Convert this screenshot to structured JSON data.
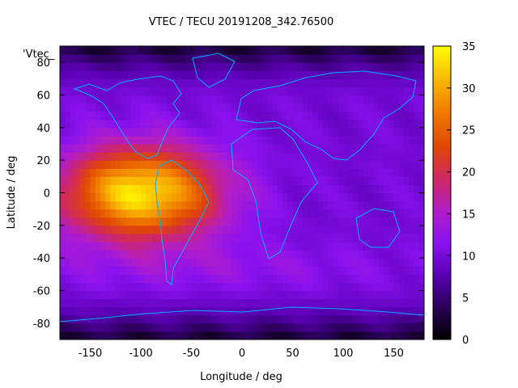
{
  "chart_data": {
    "type": "heatmap",
    "title": "VTEC / TECU 20191208_342.76500",
    "key_label": "'Vtec_",
    "xlabel": "Longitude / deg",
    "ylabel": "Latitude / deg",
    "xlim": [
      -180,
      180
    ],
    "ylim": [
      -90,
      90
    ],
    "x_ticks": [
      -150,
      -100,
      -50,
      0,
      50,
      100,
      150
    ],
    "y_ticks": [
      -80,
      -60,
      -40,
      -20,
      0,
      20,
      40,
      60,
      80
    ],
    "colorbar": {
      "range": [
        0,
        35
      ],
      "ticks": [
        0,
        5,
        10,
        15,
        20,
        25,
        30,
        35
      ],
      "colormap": [
        "#000000",
        "#2a0058",
        "#5a00b4",
        "#8a12f0",
        "#b21ec8",
        "#d02860",
        "#e04800",
        "#f07800",
        "#f8b400",
        "#ffff00"
      ]
    },
    "features": {
      "peak_vtec": 34,
      "peak_longitude": -100,
      "peak_latitude": 0,
      "background_vtec": 10,
      "polar_minimum_vtec": 2,
      "coastline_color": "#00b0ff"
    }
  }
}
